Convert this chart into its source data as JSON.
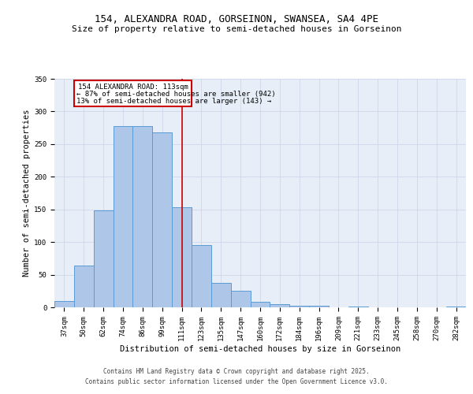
{
  "title1": "154, ALEXANDRA ROAD, GORSEINON, SWANSEA, SA4 4PE",
  "title2": "Size of property relative to semi-detached houses in Gorseinon",
  "xlabel": "Distribution of semi-detached houses by size in Gorseinon",
  "ylabel": "Number of semi-detached properties",
  "categories": [
    "37sqm",
    "50sqm",
    "62sqm",
    "74sqm",
    "86sqm",
    "99sqm",
    "111sqm",
    "123sqm",
    "135sqm",
    "147sqm",
    "160sqm",
    "172sqm",
    "184sqm",
    "196sqm",
    "209sqm",
    "221sqm",
    "233sqm",
    "245sqm",
    "258sqm",
    "270sqm",
    "282sqm"
  ],
  "values": [
    10,
    64,
    148,
    278,
    278,
    268,
    153,
    95,
    37,
    25,
    8,
    5,
    3,
    2,
    0,
    1,
    0,
    0,
    0,
    0,
    1
  ],
  "bar_color": "#aec6e8",
  "bar_edge_color": "#5b9bd5",
  "annotation_line_index": 6,
  "annotation_text_line1": "154 ALEXANDRA ROAD: 113sqm",
  "annotation_text_line2": "← 87% of semi-detached houses are smaller (942)",
  "annotation_text_line3": "13% of semi-detached houses are larger (143) →",
  "annotation_box_color": "#ffffff",
  "annotation_box_edge_color": "#cc0000",
  "vline_color": "#cc0000",
  "background_color": "#e8eef8",
  "footer1": "Contains HM Land Registry data © Crown copyright and database right 2025.",
  "footer2": "Contains public sector information licensed under the Open Government Licence v3.0.",
  "ylim": [
    0,
    350
  ],
  "yticks": [
    0,
    50,
    100,
    150,
    200,
    250,
    300,
    350
  ],
  "grid_color": "#c8d4e8",
  "title1_fontsize": 9,
  "title2_fontsize": 8,
  "tick_fontsize": 6.5,
  "label_fontsize": 7.5,
  "footer_fontsize": 5.5
}
